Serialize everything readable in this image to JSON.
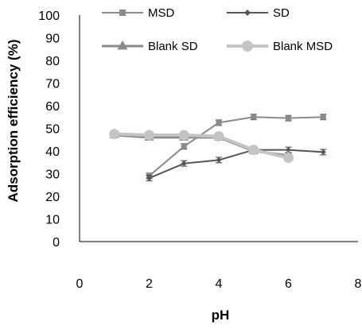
{
  "chart_data": {
    "type": "line",
    "title": "",
    "xlabel": "pH",
    "ylabel": "Adsorption efficiency (%)",
    "xlim": [
      0,
      8
    ],
    "ylim": [
      0,
      100
    ],
    "xticks": [
      "0",
      "2",
      "4",
      "6",
      "8"
    ],
    "yticks": [
      "0",
      "10",
      "20",
      "30",
      "40",
      "50",
      "60",
      "70",
      "80",
      "90",
      "100"
    ],
    "grid": false,
    "legend_position": "top",
    "series": [
      {
        "name": "MSD",
        "marker": "square",
        "color": "#8a8a8a",
        "width": 2,
        "x": [
          2,
          3,
          4,
          5,
          6,
          7
        ],
        "y": [
          29,
          42,
          52.5,
          55,
          54.5,
          55
        ],
        "err": 1.2
      },
      {
        "name": "SD",
        "marker": "diamond",
        "color": "#555555",
        "width": 2,
        "x": [
          2,
          3,
          4,
          5,
          6,
          7
        ],
        "y": [
          28,
          34.5,
          36,
          40.5,
          40.5,
          39.5
        ],
        "err": 1.2
      },
      {
        "name": "Blank SD",
        "marker": "triangle",
        "color": "#8a8a8a",
        "width": 3,
        "x": [
          1,
          2,
          3,
          4,
          5,
          6
        ],
        "y": [
          47,
          46,
          46,
          46,
          40,
          38
        ],
        "err": 1.0
      },
      {
        "name": "Blank MSD",
        "marker": "circle",
        "color": "#c4c4c4",
        "width": 4,
        "x": [
          1,
          2,
          3,
          4,
          5,
          6
        ],
        "y": [
          47.5,
          47,
          47,
          46.5,
          40.5,
          37
        ],
        "err": 1.0
      }
    ]
  }
}
